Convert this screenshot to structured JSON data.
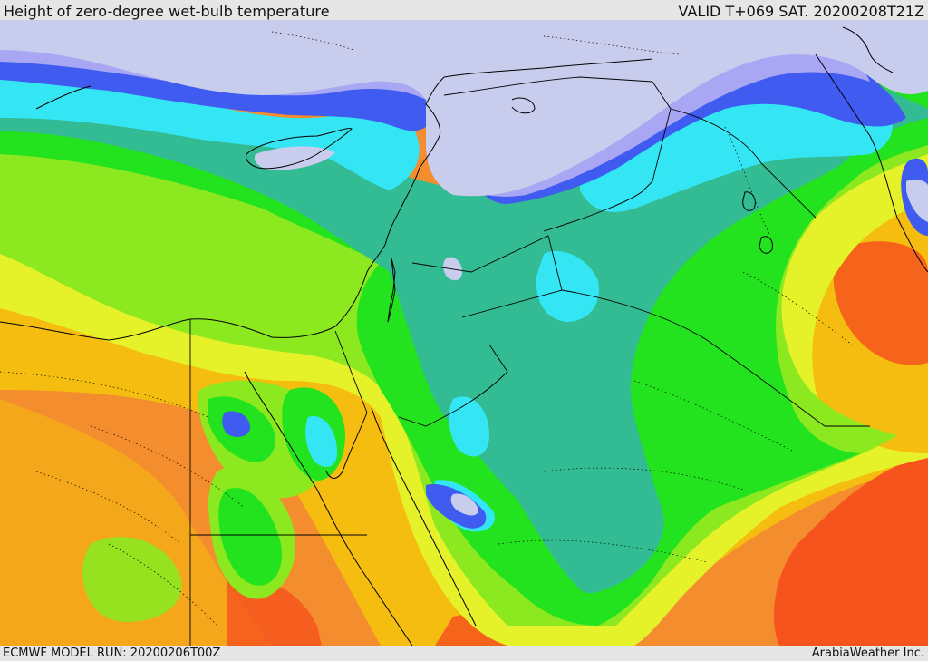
{
  "header": {
    "title": "Height of zero-degree wet-bulb temperature",
    "valid": "VALID T+069 SAT. 20200208T21Z"
  },
  "footer": {
    "model_run": "ECMWF MODEL RUN: 20200206T00Z",
    "credit": "ArabiaWeather Inc."
  },
  "colors": {
    "below": "#c8cdee",
    "periwinkle": "#a9a7f4",
    "blue": "#3f5bf0",
    "cyan": "#34e6f4",
    "teal": "#33bc93",
    "green": "#23e21e",
    "lime": "#8ce91f",
    "yellow": "#e5f22a",
    "gold": "#f5bd0f",
    "orange": "#f48d2e",
    "red": "#f6531d",
    "boundary": "#000000"
  }
}
